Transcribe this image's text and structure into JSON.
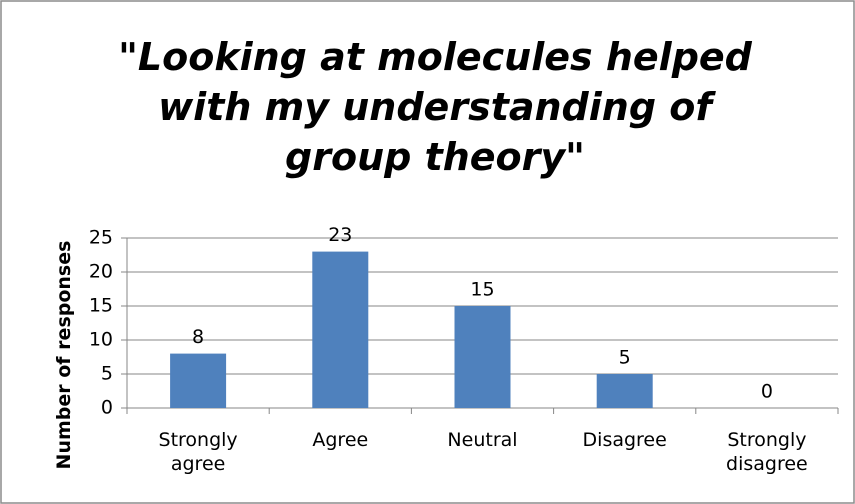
{
  "chart_data": {
    "type": "bar",
    "title": "\"Looking at molecules helped with my understanding of group theory\"",
    "y_label": "Number of responses",
    "categories": [
      "Strongly agree",
      "Agree",
      "Neutral",
      "Disagree",
      "Strongly disagree"
    ],
    "values": [
      8,
      23,
      15,
      5,
      0
    ],
    "color": "#4f81bd",
    "ylim": [
      0,
      25
    ],
    "yticks": [
      0,
      5,
      10,
      15,
      20,
      25
    ],
    "grid": true
  }
}
